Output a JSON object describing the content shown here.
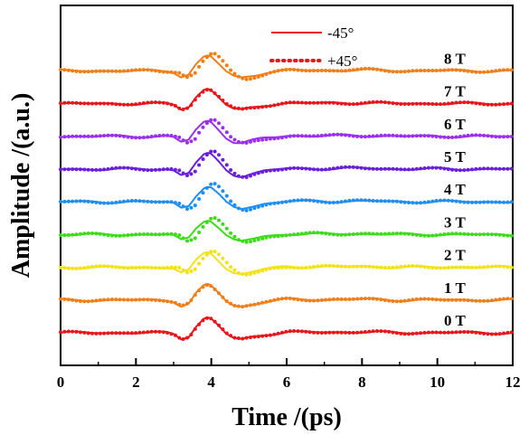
{
  "chart_data": {
    "type": "line",
    "xlabel": "Time /(ps)",
    "ylabel": "Amplitude /(a.u.)",
    "xlim": [
      0,
      12
    ],
    "xticks": [
      0,
      2,
      4,
      6,
      8,
      10,
      12
    ],
    "legend_position": "top-center",
    "legend": [
      {
        "label": "-45°",
        "style": "solid"
      },
      {
        "label": "+45°",
        "style": "dotted"
      }
    ],
    "traces": [
      {
        "label": "0 T",
        "color": "#e8161b",
        "offset": 0,
        "sign": -1
      },
      {
        "label": "1 T",
        "color": "#f07f1a",
        "offset": 1,
        "sign": -1
      },
      {
        "label": "2 T",
        "color": "#f2e317",
        "offset": 2,
        "sign": 1
      },
      {
        "label": "3 T",
        "color": "#3ddc1a",
        "offset": 3,
        "sign": 1
      },
      {
        "label": "4 T",
        "color": "#1f8ef1",
        "offset": 4,
        "sign": 1
      },
      {
        "label": "5 T",
        "color": "#6a1fdc",
        "offset": 5,
        "sign": 1
      },
      {
        "label": "6 T",
        "color": "#9b2ff0",
        "offset": 6,
        "sign": 1
      },
      {
        "label": "7 T",
        "color": "#e8161b",
        "offset": 7,
        "sign": -1
      },
      {
        "label": "8 T",
        "color": "#f07f1a",
        "offset": 8,
        "sign": 1
      }
    ],
    "waveform": {
      "x": [
        0,
        1,
        2,
        2.8,
        3.0,
        3.2,
        3.4,
        3.6,
        3.8,
        3.9,
        4.0,
        4.2,
        4.4,
        4.6,
        4.8,
        5.0,
        5.4,
        6.0,
        7.0,
        8.0,
        9.0,
        10.0,
        11.0,
        12.0
      ],
      "y": [
        0,
        0,
        0,
        0,
        -0.05,
        -0.25,
        -0.15,
        0.3,
        0.62,
        0.68,
        0.62,
        0.3,
        -0.05,
        -0.25,
        -0.3,
        -0.22,
        -0.08,
        0.03,
        0.02,
        0.04,
        0.0,
        0.01,
        0.0,
        0.0
      ],
      "dotted_x_shift": 0.15,
      "dotted_amp_delta": 0.15
    }
  }
}
